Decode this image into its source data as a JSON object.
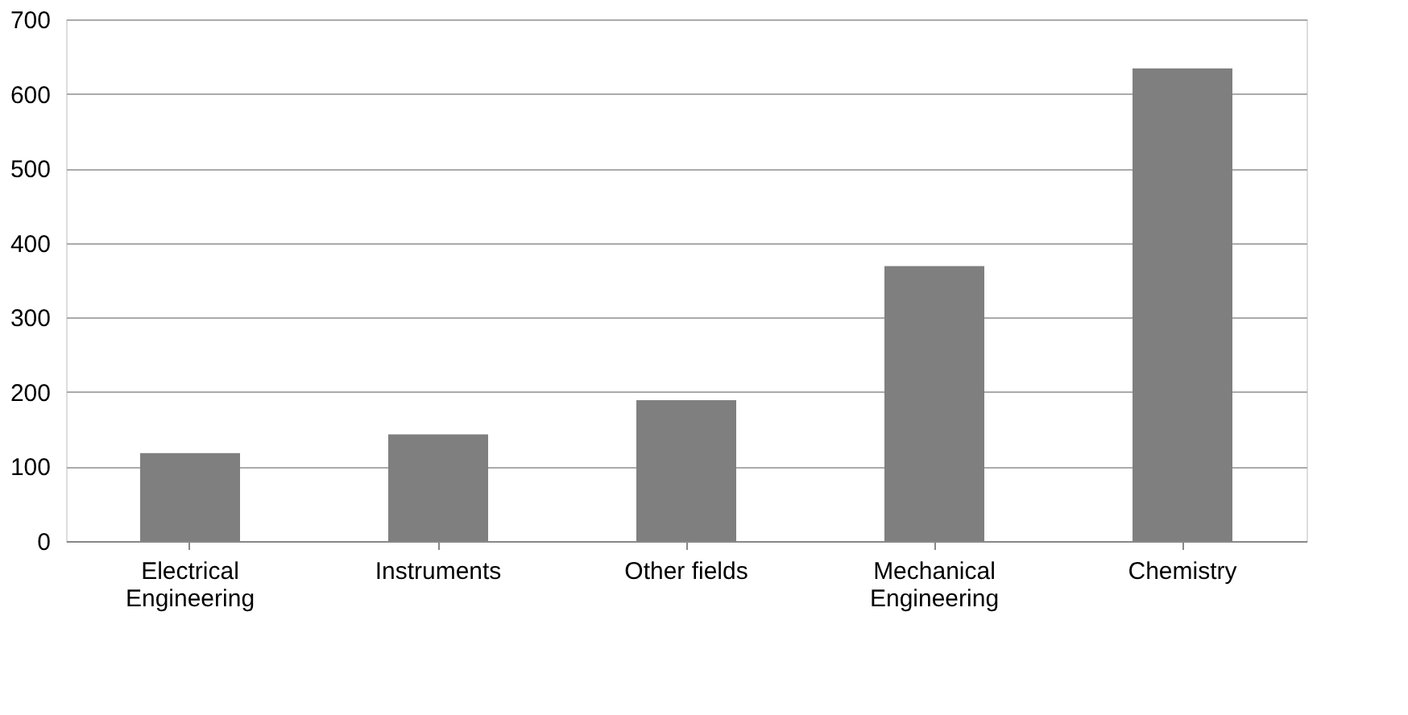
{
  "chart_data": {
    "type": "bar",
    "categories": [
      "Electrical Engineering",
      "Instruments",
      "Other fields",
      "Mechanical Engineering",
      "Chemistry"
    ],
    "values": [
      118,
      143,
      189,
      369,
      634
    ],
    "color": "#7f7f7f",
    "ylim": [
      0,
      700
    ],
    "yticks": [
      0,
      100,
      200,
      300,
      400,
      500,
      600,
      700
    ],
    "grid": "y"
  }
}
